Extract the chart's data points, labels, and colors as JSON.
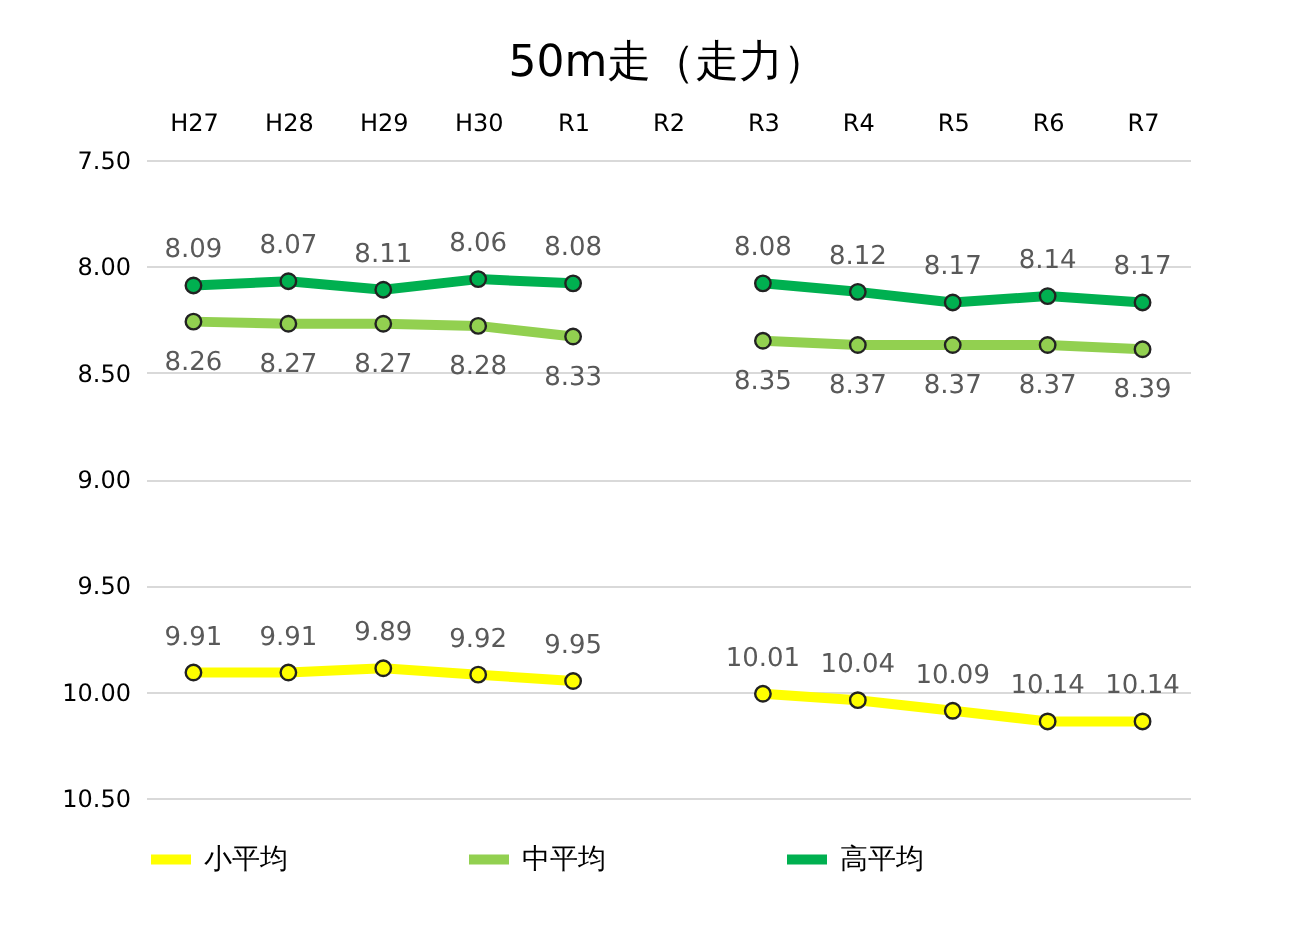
{
  "chart_data": {
    "type": "line",
    "title": "50m走（走力）",
    "categories": [
      "H27",
      "H28",
      "H29",
      "H30",
      "R1",
      "R2",
      "R3",
      "R4",
      "R5",
      "R6",
      "R7"
    ],
    "series": [
      {
        "name": "小平均",
        "color": "#ffff00",
        "values": [
          9.91,
          9.91,
          9.89,
          9.92,
          9.95,
          null,
          10.01,
          10.04,
          10.09,
          10.14,
          10.14
        ]
      },
      {
        "name": "中平均",
        "color": "#92d050",
        "values": [
          8.26,
          8.27,
          8.27,
          8.28,
          8.33,
          null,
          8.35,
          8.37,
          8.37,
          8.37,
          8.39
        ]
      },
      {
        "name": "高平均",
        "color": "#00b050",
        "values": [
          8.09,
          8.07,
          8.11,
          8.06,
          8.08,
          null,
          8.08,
          8.12,
          8.17,
          8.14,
          8.17
        ]
      }
    ],
    "ylim": [
      10.5,
      7.5
    ],
    "yticks": [
      {
        "value": 7.5,
        "label": "7.50"
      },
      {
        "value": 8.0,
        "label": "8.00"
      },
      {
        "value": 8.5,
        "label": "8.50"
      },
      {
        "value": 9.0,
        "label": "9.00"
      },
      {
        "value": 9.5,
        "label": "9.50"
      },
      {
        "value": 10.0,
        "label": "10.00"
      },
      {
        "value": 10.5,
        "label": "10.50"
      }
    ],
    "grid": "y",
    "legend": "bottom",
    "marker": "circle",
    "line_style": "solid",
    "data_labels": true
  }
}
